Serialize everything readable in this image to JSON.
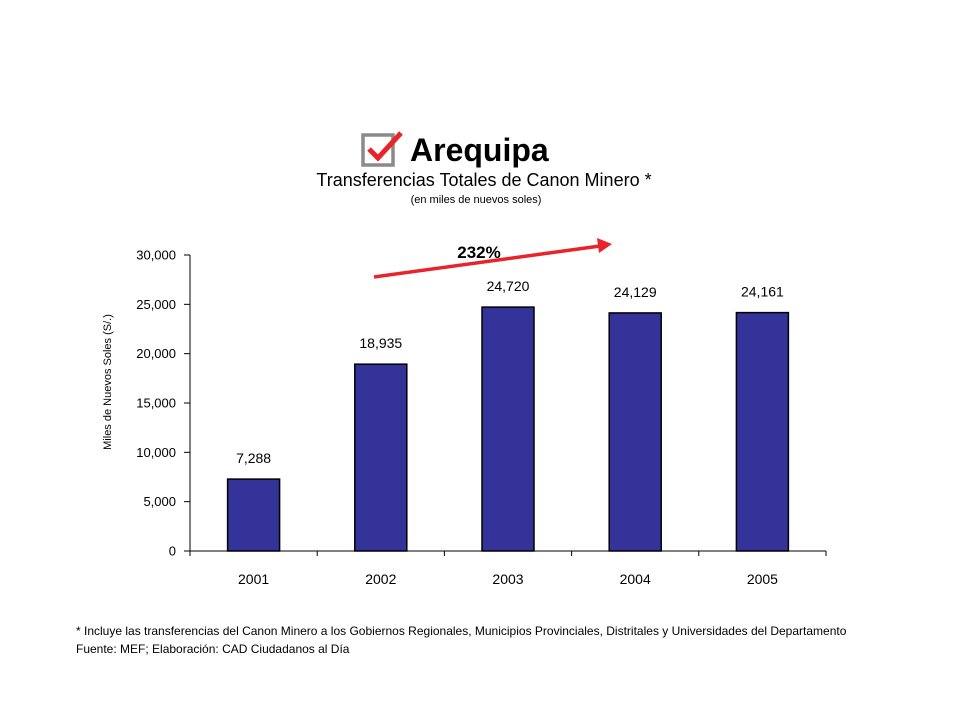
{
  "header": {
    "region": "Arequipa",
    "check_icon": "checkbox-checked-icon",
    "colors": {
      "check_box_border": "#8a8a8a",
      "check_mark": "#e8232a"
    }
  },
  "chart_data": {
    "type": "bar",
    "title": "Transferencias Totales de Canon Minero *",
    "subtitle": "(en miles de nuevos soles)",
    "xlabel": "",
    "ylabel": "Miles de Nuevos Soles (S/.)",
    "categories": [
      "2001",
      "2002",
      "2003",
      "2004",
      "2005"
    ],
    "values": [
      7288,
      18935,
      24720,
      24129,
      24161
    ],
    "value_labels": [
      "7,288",
      "18,935",
      "24,720",
      "24,129",
      "24,161"
    ],
    "ylim": [
      0,
      30000
    ],
    "yticks": [
      0,
      5000,
      10000,
      15000,
      20000,
      25000,
      30000
    ],
    "ytick_labels": [
      "0",
      "5,000",
      "10,000",
      "15,000",
      "20,000",
      "25,000",
      "30,000"
    ],
    "grid": false,
    "legend": "none",
    "annotation": {
      "text": "232%",
      "arrow_color": "#e8232a"
    },
    "colors": {
      "bar_fill": "#333399",
      "bar_stroke": "#000000",
      "axis": "#000000"
    }
  },
  "notes": {
    "footnote": "* Incluye las transferencias del Canon Minero a los Gobiernos Regionales, Municipios Provinciales, Distritales y Universidades del Departamento",
    "source": "Fuente: MEF; Elaboración: CAD Ciudadanos al Día"
  }
}
